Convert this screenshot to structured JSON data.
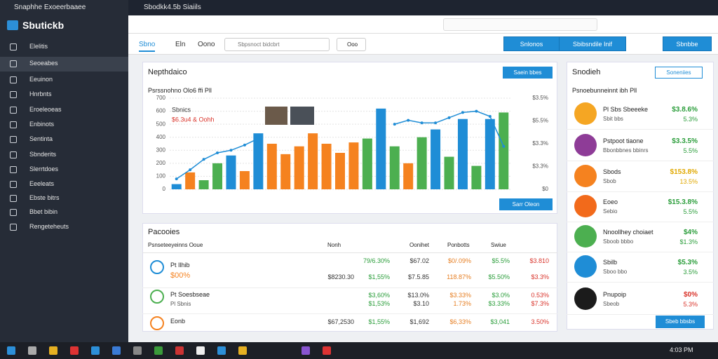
{
  "browser": {
    "tab_title": "Snaphhe Exoeerbaaee",
    "page_tab": "Sbodkk4.5b Siaiils",
    "clock": "4:03 PM"
  },
  "sidebar": {
    "title": "Sbutickb",
    "items": [
      "Elelitis",
      "Seoeabes",
      "Eeuinon",
      "Hnrbnts",
      "Eroeleoeas",
      "Enbinots",
      "Sentinta",
      "Sbnderits",
      "Slerrtdoes",
      "Eeeleats",
      "Ebste bitrs",
      "Bbet bibin",
      "Rengeteheuts"
    ]
  },
  "toolbar": {
    "tabs": [
      "Sbno",
      "Eln",
      "Oono"
    ],
    "search": "Sbpsnoct bidcbrt",
    "select": "Ooo",
    "buttons": [
      "Snlonos",
      "Sbibsndile Inif",
      "Sbnbbe"
    ]
  },
  "overview": {
    "title": "Nepthdaico",
    "button": "Saein bbes",
    "footer_button": "Sarr Oleon"
  },
  "chart_data": {
    "type": "bar",
    "title": "Psrssnohno Olo6 ffi Pll",
    "annotation": "Sbnics",
    "subannotation": "$6.3u4 & Oohh",
    "values": [
      40,
      130,
      70,
      200,
      260,
      140,
      430,
      350,
      270,
      330,
      430,
      350,
      280,
      360,
      390,
      620,
      330,
      200,
      400,
      460,
      250,
      540,
      180,
      540,
      590
    ],
    "colors": [
      "#1f8dd6",
      "#f5821f",
      "#4caf50",
      "#4caf50",
      "#1f8dd6",
      "#f5821f",
      "#1f8dd6",
      "#f5821f",
      "#f5821f",
      "#f5821f",
      "#f5821f",
      "#f5821f",
      "#f5821f",
      "#f5821f",
      "#4caf50",
      "#1f8dd6",
      "#4caf50",
      "#f5821f",
      "#4caf50",
      "#1f8dd6",
      "#4caf50",
      "#1f8dd6",
      "#4caf50",
      "#1f8dd6",
      "#4caf50"
    ],
    "line": {
      "color": "#1f8dd6",
      "values": [
        80,
        150,
        230,
        280,
        300,
        340,
        390,
        null,
        null,
        null,
        null,
        null,
        null,
        null,
        null,
        null,
        500,
        530,
        510,
        510,
        550,
        590,
        600,
        560,
        330
      ]
    },
    "ylim": [
      0,
      700
    ],
    "yticks": [
      0,
      100,
      200,
      300,
      400,
      500,
      600,
      700
    ],
    "grid": true,
    "right_labels": [
      "$3.5%",
      "$5.5%",
      "$3.3%",
      "$3.3%",
      "$0"
    ]
  },
  "table": {
    "title": "Pacooies",
    "headers": [
      "Psnseteeyeinns Ooue",
      "Nonh",
      "Oonihet",
      "Ponbotts",
      "Swiue"
    ],
    "rows": [
      {
        "name": "Pt Ilhib",
        "sub": "$00%",
        "lines": [
          [
            "79/6.30%",
            "$67.02",
            "$0/.09%",
            "$5.5%",
            "$3.810"
          ],
          [
            "$8230.30",
            "$1,55%",
            "$7.5.85",
            "118.87%",
            "$5.50%",
            "$3.3%"
          ]
        ]
      },
      {
        "name": "Pt Soesbseae",
        "sub": "Pl Sbnis",
        "lines": [
          [
            "$3,60%",
            "$13.0%",
            "$3.33%",
            "$3.0%",
            "0.53%"
          ],
          [
            "$1,53%",
            "$3.10",
            "1.73%",
            "$3.33%",
            "$7.3%"
          ]
        ]
      },
      {
        "name": "Eonb",
        "sub": "",
        "lines": [
          [
            "$67,2530",
            "$1,55%",
            "$1,692",
            "$6,33%",
            "$3,041",
            "3.50%"
          ]
        ]
      }
    ]
  },
  "watchlist": {
    "title": "Snodieh",
    "button": "Soneniies",
    "subtitle": "Psnoebunneinnt ibh Pll",
    "footer_button": "Sbeb bbsbs",
    "items": [
      {
        "name": "Pl Sbs Sbeeeke",
        "sub": "Sbit bbs",
        "value": "$3.8.6%",
        "change": "5.3%",
        "color": "#f5a623",
        "value_color": "#2a9d3a"
      },
      {
        "name": "Pstpoot tiaone",
        "sub": "Bbonbbnes bbinrs",
        "value": "$3.3.5%",
        "change": "5.5%",
        "color": "#8e3c97",
        "value_color": "#2a9d3a"
      },
      {
        "name": "Sbods",
        "sub": "Sbob",
        "value": "$153.8%",
        "change": "13.5%",
        "color": "#f5821f",
        "value_color": "#e0a800"
      },
      {
        "name": "Eoeo",
        "sub": "Sebio",
        "value": "$15.3.8%",
        "change": "5.5%",
        "color": "#f26a1b",
        "value_color": "#2a9d3a"
      },
      {
        "name": "Nnoollhey choiaet",
        "sub": "Sboob bbbo",
        "value": "$4%",
        "change": "$1.3%",
        "color": "#4caf50",
        "value_color": "#2a9d3a"
      },
      {
        "name": "Sbilb",
        "sub": "Sboo bbo",
        "value": "$5.3%",
        "change": "3.5%",
        "color": "#1f8dd6",
        "value_color": "#2a9d3a"
      },
      {
        "name": "Pnupoip",
        "sub": "Sbeob",
        "value": "$0%",
        "change": "5.3%",
        "color": "#1b1b1b",
        "value_color": "#d9342b"
      }
    ]
  }
}
